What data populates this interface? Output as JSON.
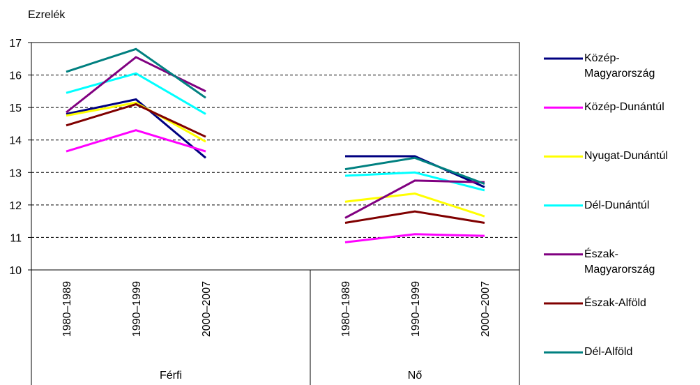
{
  "chart_data": {
    "type": "line",
    "y_label": "Ezrelék",
    "categories": [
      "1980–1989",
      "1990–1999",
      "2000–2007",
      null,
      "1980–1989",
      "1990–1999",
      "2000–2007"
    ],
    "groups": [
      "Férfi",
      "Nő"
    ],
    "series": [
      {
        "name": "Közép-Magyarország",
        "color": "#000080",
        "values": [
          14.8,
          15.25,
          13.45,
          null,
          13.5,
          13.5,
          12.55
        ]
      },
      {
        "name": "Közép-Dunántúl",
        "color": "#ff00ff",
        "values": [
          13.65,
          14.3,
          13.65,
          null,
          10.85,
          11.1,
          11.05
        ]
      },
      {
        "name": "Nyugat-Dunántúl",
        "color": "#ffff00",
        "values": [
          14.75,
          15.15,
          13.95,
          null,
          12.1,
          12.35,
          11.65
        ]
      },
      {
        "name": "Dél-Dunántúl",
        "color": "#00ffff",
        "values": [
          15.45,
          16.05,
          14.8,
          null,
          12.9,
          13.0,
          12.45
        ]
      },
      {
        "name": "Észak-Magyarország",
        "color": "#800080",
        "values": [
          14.85,
          16.55,
          15.5,
          null,
          11.6,
          12.75,
          12.7
        ]
      },
      {
        "name": "Észak-Alföld",
        "color": "#800000",
        "values": [
          14.45,
          15.1,
          14.1,
          null,
          11.45,
          11.8,
          11.45
        ]
      },
      {
        "name": "Dél-Alföld",
        "color": "#008080",
        "values": [
          16.1,
          16.8,
          15.3,
          null,
          13.1,
          13.45,
          12.65
        ]
      }
    ],
    "ylim": [
      10,
      17
    ],
    "yticks": [
      10,
      11,
      12,
      13,
      14,
      15,
      16,
      17
    ],
    "grid": true
  }
}
